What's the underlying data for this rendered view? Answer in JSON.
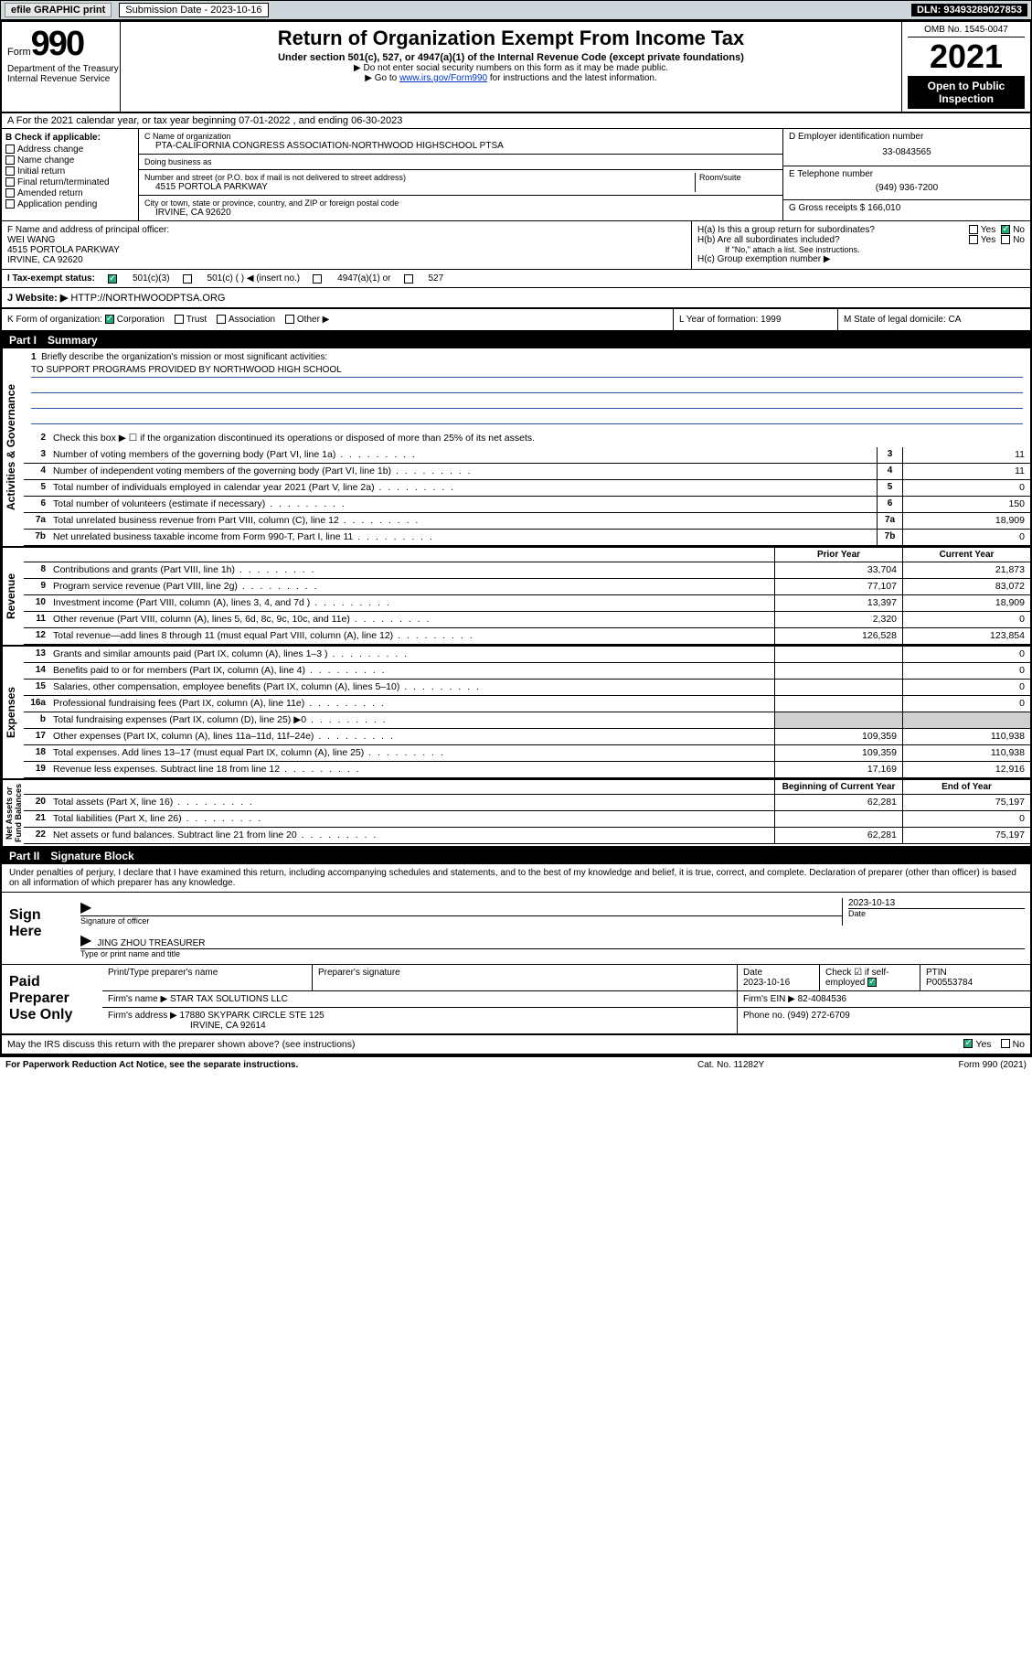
{
  "topbar": {
    "efile": "efile GRAPHIC print",
    "submission": "Submission Date - 2023-10-16",
    "dln": "DLN: 93493289027853"
  },
  "header": {
    "form_word": "Form",
    "form_num": "990",
    "dept": "Department of the Treasury\nInternal Revenue Service",
    "title": "Return of Organization Exempt From Income Tax",
    "sub": "Under section 501(c), 527, or 4947(a)(1) of the Internal Revenue Code (except private foundations)",
    "note1": "▶ Do not enter social security numbers on this form as it may be made public.",
    "note2_pre": "▶ Go to ",
    "note2_link": "www.irs.gov/Form990",
    "note2_post": " for instructions and the latest information.",
    "omb": "OMB No. 1545-0047",
    "year": "2021",
    "open": "Open to Public Inspection"
  },
  "rowA": "A For the 2021 calendar year, or tax year beginning 07-01-2022    , and ending 06-30-2023",
  "B": {
    "head": "B Check if applicable:",
    "items": [
      "Address change",
      "Name change",
      "Initial return",
      "Final return/terminated",
      "Amended return",
      "Application pending"
    ]
  },
  "C": {
    "name_lbl": "C Name of organization",
    "name": "PTA-CALIFORNIA CONGRESS ASSOCIATION-NORTHWOOD HIGHSCHOOL PTSA",
    "dba_lbl": "Doing business as",
    "addr_lbl": "Number and street (or P.O. box if mail is not delivered to street address)",
    "room_lbl": "Room/suite",
    "addr": "4515 PORTOLA PARKWAY",
    "city_lbl": "City or town, state or province, country, and ZIP or foreign postal code",
    "city": "IRVINE, CA  92620"
  },
  "D": {
    "lbl": "D Employer identification number",
    "val": "33-0843565"
  },
  "E": {
    "lbl": "E Telephone number",
    "val": "(949) 936-7200"
  },
  "G": {
    "lbl": "G Gross receipts $",
    "val": "166,010"
  },
  "F": {
    "lbl": "F  Name and address of principal officer:",
    "name": "WEI WANG",
    "addr1": "4515 PORTOLA PARKWAY",
    "addr2": "IRVINE, CA  92620"
  },
  "H": {
    "a": "H(a)  Is this a group return for subordinates?",
    "b": "H(b)  Are all subordinates included?",
    "b_note": "If \"No,\" attach a list. See instructions.",
    "c": "H(c)  Group exemption number ▶",
    "yes": "Yes",
    "no": "No"
  },
  "I": {
    "lbl": "I    Tax-exempt status:",
    "o1": "501(c)(3)",
    "o2": "501(c) (  ) ◀ (insert no.)",
    "o3": "4947(a)(1) or",
    "o4": "527"
  },
  "J": {
    "lbl": "J    Website: ▶",
    "val": "HTTP://NORTHWOODPTSA.ORG"
  },
  "K": {
    "lbl": "K Form of organization:",
    "o1": "Corporation",
    "o2": "Trust",
    "o3": "Association",
    "o4": "Other ▶"
  },
  "L": {
    "lbl": "L Year of formation:",
    "val": "1999"
  },
  "M": {
    "lbl": "M State of legal domicile:",
    "val": "CA"
  },
  "parts": {
    "p1": "Part I",
    "p1t": "Summary",
    "p2": "Part II",
    "p2t": "Signature Block"
  },
  "p1": {
    "l1": "Briefly describe the organization's mission or most significant activities:",
    "l1v": "TO SUPPORT PROGRAMS PROVIDED BY NORTHWOOD HIGH SCHOOL",
    "l2": "Check this box ▶ ☐ if the organization discontinued its operations or disposed of more than 25% of its net assets.",
    "gov": [
      {
        "n": "3",
        "d": "Number of voting members of the governing body (Part VI, line 1a)",
        "v": "11"
      },
      {
        "n": "4",
        "d": "Number of independent voting members of the governing body (Part VI, line 1b)",
        "v": "11"
      },
      {
        "n": "5",
        "d": "Total number of individuals employed in calendar year 2021 (Part V, line 2a)",
        "v": "0"
      },
      {
        "n": "6",
        "d": "Total number of volunteers (estimate if necessary)",
        "v": "150"
      },
      {
        "n": "7a",
        "d": "Total unrelated business revenue from Part VIII, column (C), line 12",
        "v": "18,909"
      },
      {
        "n": "7b",
        "d": "Net unrelated business taxable income from Form 990-T, Part I, line 11",
        "v": "0"
      }
    ],
    "hdr_prior": "Prior Year",
    "hdr_curr": "Current Year",
    "rev": [
      {
        "n": "8",
        "d": "Contributions and grants (Part VIII, line 1h)",
        "p": "33,704",
        "c": "21,873"
      },
      {
        "n": "9",
        "d": "Program service revenue (Part VIII, line 2g)",
        "p": "77,107",
        "c": "83,072"
      },
      {
        "n": "10",
        "d": "Investment income (Part VIII, column (A), lines 3, 4, and 7d )",
        "p": "13,397",
        "c": "18,909"
      },
      {
        "n": "11",
        "d": "Other revenue (Part VIII, column (A), lines 5, 6d, 8c, 9c, 10c, and 11e)",
        "p": "2,320",
        "c": "0"
      },
      {
        "n": "12",
        "d": "Total revenue—add lines 8 through 11 (must equal Part VIII, column (A), line 12)",
        "p": "126,528",
        "c": "123,854"
      }
    ],
    "exp": [
      {
        "n": "13",
        "d": "Grants and similar amounts paid (Part IX, column (A), lines 1–3 )",
        "p": "",
        "c": "0"
      },
      {
        "n": "14",
        "d": "Benefits paid to or for members (Part IX, column (A), line 4)",
        "p": "",
        "c": "0"
      },
      {
        "n": "15",
        "d": "Salaries, other compensation, employee benefits (Part IX, column (A), lines 5–10)",
        "p": "",
        "c": "0"
      },
      {
        "n": "16a",
        "d": "Professional fundraising fees (Part IX, column (A), line 11e)",
        "p": "",
        "c": "0"
      },
      {
        "n": "b",
        "d": "Total fundraising expenses (Part IX, column (D), line 25) ▶0",
        "p": "shade",
        "c": "shade"
      },
      {
        "n": "17",
        "d": "Other expenses (Part IX, column (A), lines 11a–11d, 11f–24e)",
        "p": "109,359",
        "c": "110,938"
      },
      {
        "n": "18",
        "d": "Total expenses. Add lines 13–17 (must equal Part IX, column (A), line 25)",
        "p": "109,359",
        "c": "110,938"
      },
      {
        "n": "19",
        "d": "Revenue less expenses. Subtract line 18 from line 12",
        "p": "17,169",
        "c": "12,916"
      }
    ],
    "hdr_beg": "Beginning of Current Year",
    "hdr_end": "End of Year",
    "net": [
      {
        "n": "20",
        "d": "Total assets (Part X, line 16)",
        "p": "62,281",
        "c": "75,197"
      },
      {
        "n": "21",
        "d": "Total liabilities (Part X, line 26)",
        "p": "",
        "c": "0"
      },
      {
        "n": "22",
        "d": "Net assets or fund balances. Subtract line 21 from line 20",
        "p": "62,281",
        "c": "75,197"
      }
    ],
    "vlabels": {
      "gov": "Activities & Governance",
      "rev": "Revenue",
      "exp": "Expenses",
      "net": "Net Assets or\nFund Balances"
    }
  },
  "sig": {
    "intro": "Under penalties of perjury, I declare that I have examined this return, including accompanying schedules and statements, and to the best of my knowledge and belief, it is true, correct, and complete. Declaration of preparer (other than officer) is based on all information of which preparer has any knowledge.",
    "sign_here": "Sign Here",
    "sig_of_officer": "Signature of officer",
    "date": "2023-10-13",
    "date_lbl": "Date",
    "name": "JING ZHOU TREASURER",
    "name_lbl": "Type or print name and title"
  },
  "prep": {
    "title": "Paid Preparer Use Only",
    "h1": "Print/Type preparer's name",
    "h2": "Preparer's signature",
    "h3": "Date",
    "h3v": "2023-10-16",
    "h4": "Check ☑ if self-employed",
    "h5": "PTIN",
    "h5v": "P00553784",
    "firm_lbl": "Firm's name    ▶",
    "firm": "STAR TAX SOLUTIONS LLC",
    "ein_lbl": "Firm's EIN ▶",
    "ein": "82-4084536",
    "addr_lbl": "Firm's address ▶",
    "addr1": "17880 SKYPARK CIRCLE STE 125",
    "addr2": "IRVINE, CA  92614",
    "phone_lbl": "Phone no.",
    "phone": "(949) 272-6709"
  },
  "discuss": {
    "q": "May the IRS discuss this return with the preparer shown above? (see instructions)",
    "yes": "Yes",
    "no": "No"
  },
  "footer": {
    "l": "For Paperwork Reduction Act Notice, see the separate instructions.",
    "m": "Cat. No. 11282Y",
    "r": "Form 990 (2021)"
  },
  "colors": {
    "topbar_bg": "#cbd5da",
    "link": "#0033cc",
    "black": "#000000",
    "check_green": "#22aa77",
    "mission_line": "#2953a6",
    "shade": "#d0d0d0"
  }
}
